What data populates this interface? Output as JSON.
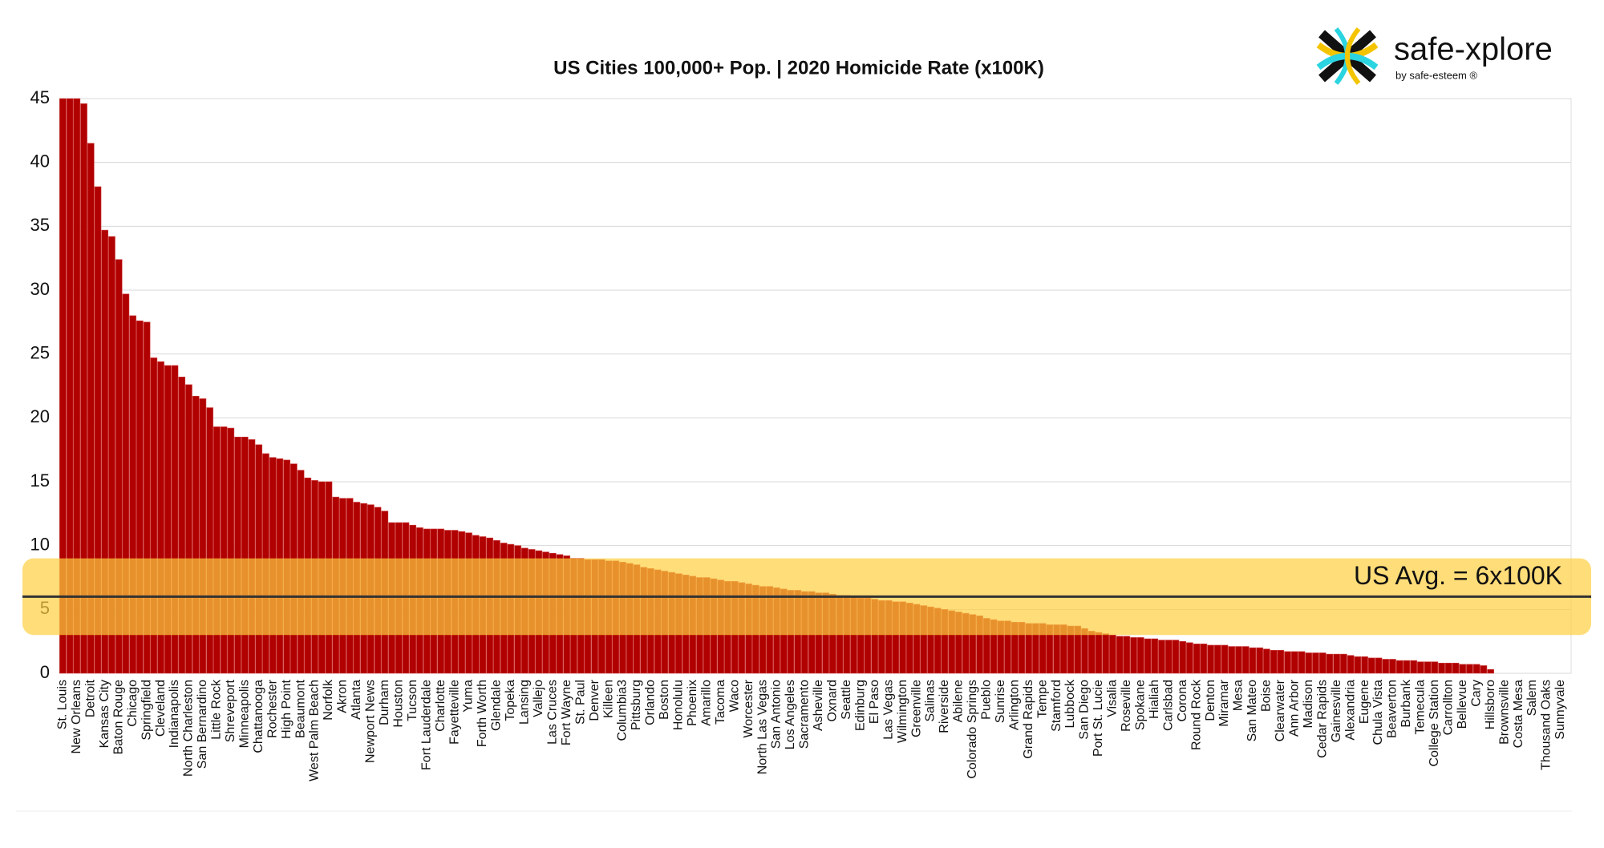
{
  "chart_data": {
    "type": "bar",
    "title": "US Cities 100,000+ Pop. | 2020 Homicide Rate (x100K)",
    "logo": {
      "name": "safe-xplore",
      "tagline": "by safe-esteem ®"
    },
    "categories": [
      "St. Louis",
      null,
      "New Orleans",
      null,
      "Detroit",
      null,
      "Kansas City",
      null,
      "Baton Rouge",
      null,
      "Chicago",
      null,
      "Springfield",
      null,
      "Cleveland",
      null,
      "Indianapolis",
      null,
      "North Charleston",
      null,
      "San Bernardino",
      null,
      "Little Rock",
      null,
      "Shreveport",
      null,
      "Minneapolis",
      null,
      "Chattanooga",
      null,
      "Rochester",
      null,
      "High Point",
      null,
      "Beaumont",
      null,
      "West Palm Beach",
      null,
      "Norfolk",
      null,
      "Akron",
      null,
      "Atlanta",
      null,
      "Newport News",
      null,
      "Durham",
      null,
      "Houston",
      null,
      "Tucson",
      null,
      "Fort Lauderdale",
      null,
      "Charlotte",
      null,
      "Fayetteville",
      null,
      "Yuma",
      null,
      "Forth Worth",
      null,
      "Glendale",
      null,
      "Topeka",
      null,
      "Lansing",
      null,
      "Vallejo",
      null,
      "Las Cruces",
      null,
      "Fort Wayne",
      null,
      "St. Paul",
      null,
      "Denver",
      null,
      "Killeen",
      null,
      "Columbia3",
      null,
      "Pittsburg",
      null,
      "Orlando",
      null,
      "Boston",
      null,
      "Honolulu",
      null,
      "Phoenix",
      null,
      "Amarillo",
      null,
      "Tacoma",
      null,
      "Waco",
      null,
      "Worcester",
      null,
      "North Las Vegas",
      null,
      "San Antonio",
      null,
      "Los Angeles",
      null,
      "Sacramento",
      null,
      "Asheville",
      null,
      "Oxnard",
      null,
      "Seattle",
      null,
      "Edinburg",
      null,
      "El Paso",
      null,
      "Las Vegas",
      null,
      "Wilmington",
      null,
      "Greenville",
      null,
      "Salinas",
      null,
      "Riverside",
      null,
      "Abilene",
      null,
      "Colorado Springs",
      null,
      "Pueblo",
      null,
      "Sunrise",
      null,
      "Arlington",
      null,
      "Grand Rapids",
      null,
      "Tempe",
      null,
      "Stamford",
      null,
      "Lubbock",
      null,
      "San Diego",
      null,
      "Port St. Lucie",
      null,
      "Visalia",
      null,
      "Roseville",
      null,
      "Spokane",
      null,
      "Hialiah",
      null,
      "Carlsbad",
      null,
      "Corona",
      null,
      "Round Rock",
      null,
      "Denton",
      null,
      "Miramar",
      null,
      "Mesa",
      null,
      "San Mateo",
      null,
      "Boise",
      null,
      "Clearwater",
      null,
      "Ann Arbor",
      null,
      "Madison",
      null,
      "Cedar Rapids",
      null,
      "Gainesville",
      null,
      "Alexandria",
      null,
      "Eugene",
      null,
      "Chula Vista",
      null,
      "Beaverton",
      null,
      "Burbank",
      null,
      "Temecula",
      null,
      "College Station",
      null,
      "Carrollton",
      null,
      "Bellevue",
      null,
      "Cary",
      null,
      "Hillsboro",
      null,
      "Brownsville",
      null,
      "Costa Mesa",
      null,
      "Salem",
      null,
      "Thousand Oaks",
      null,
      "Sunnyvale",
      null
    ],
    "values": [
      45,
      45,
      45,
      44.6,
      41.5,
      38.1,
      34.7,
      34.2,
      32.4,
      29.7,
      28,
      27.6,
      27.5,
      24.7,
      24.4,
      24.1,
      24.1,
      23.2,
      22.6,
      21.7,
      21.5,
      20.8,
      19.3,
      19.3,
      19.2,
      18.5,
      18.5,
      18.3,
      17.9,
      17.2,
      16.9,
      16.8,
      16.7,
      16.4,
      15.9,
      15.3,
      15.1,
      15,
      15,
      13.8,
      13.7,
      13.7,
      13.4,
      13.3,
      13.2,
      13,
      12.7,
      11.8,
      11.8,
      11.8,
      11.6,
      11.4,
      11.3,
      11.3,
      11.3,
      11.2,
      11.2,
      11.1,
      11,
      10.8,
      10.7,
      10.6,
      10.4,
      10.2,
      10.1,
      10,
      9.8,
      9.7,
      9.6,
      9.5,
      9.4,
      9.3,
      9.2,
      9,
      9,
      8.9,
      8.9,
      8.9,
      8.8,
      8.8,
      8.7,
      8.6,
      8.5,
      8.3,
      8.2,
      8.1,
      8,
      7.9,
      7.8,
      7.7,
      7.6,
      7.5,
      7.5,
      7.4,
      7.3,
      7.2,
      7.2,
      7.1,
      7,
      6.9,
      6.8,
      6.8,
      6.7,
      6.6,
      6.5,
      6.5,
      6.4,
      6.4,
      6.3,
      6.3,
      6.2,
      6.1,
      6.1,
      6,
      5.9,
      5.9,
      5.8,
      5.7,
      5.7,
      5.6,
      5.6,
      5.5,
      5.4,
      5.3,
      5.2,
      5.1,
      5,
      4.9,
      4.8,
      4.7,
      4.6,
      4.5,
      4.3,
      4.2,
      4.1,
      4.1,
      4,
      4,
      3.9,
      3.9,
      3.9,
      3.8,
      3.8,
      3.8,
      3.7,
      3.7,
      3.5,
      3.3,
      3.2,
      3.1,
      3,
      2.9,
      2.9,
      2.8,
      2.8,
      2.7,
      2.7,
      2.6,
      2.6,
      2.6,
      2.5,
      2.4,
      2.3,
      2.3,
      2.2,
      2.2,
      2.2,
      2.1,
      2.1,
      2.1,
      2,
      2,
      1.9,
      1.8,
      1.8,
      1.7,
      1.7,
      1.7,
      1.6,
      1.6,
      1.6,
      1.5,
      1.5,
      1.5,
      1.4,
      1.3,
      1.3,
      1.2,
      1.2,
      1.1,
      1.1,
      1,
      1,
      1,
      0.9,
      0.9,
      0.9,
      0.8,
      0.8,
      0.8,
      0.7,
      0.7,
      0.7,
      0.6,
      0.3,
      0,
      0,
      0,
      0,
      0,
      0,
      0,
      0,
      0,
      0,
      0
    ],
    "color": "#b00000",
    "ylim": [
      0,
      45
    ],
    "yticks": [
      0,
      5,
      10,
      15,
      20,
      25,
      30,
      35,
      40,
      45
    ],
    "grid": true,
    "reference_line": {
      "value": 6,
      "label": "US Avg. = 6x100K",
      "band": [
        3,
        9
      ],
      "color": "#333333",
      "band_color": "#ffcf40"
    }
  }
}
